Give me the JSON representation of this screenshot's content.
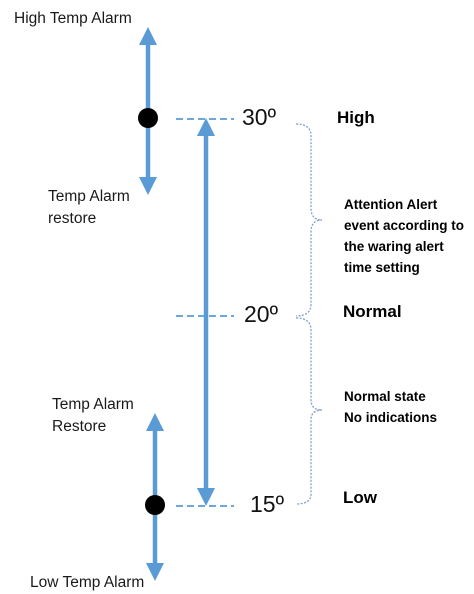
{
  "labels": {
    "high_temp_alarm": "High Temp Alarm",
    "temp_alarm_restore_upper_1": "Temp Alarm",
    "temp_alarm_restore_upper_2": "restore",
    "temp_alarm_restore_lower_1": "Temp Alarm",
    "temp_alarm_restore_lower_2": "Restore",
    "low_temp_alarm": "Low Temp Alarm"
  },
  "thresholds": [
    {
      "value": "30º",
      "level": "High"
    },
    {
      "value": "20º",
      "level": "Normal"
    },
    {
      "value": "15º",
      "level": "Low"
    }
  ],
  "notes": {
    "attention": [
      "Attention Alert",
      "event according to",
      "the waring alert",
      "time setting"
    ],
    "normal": [
      "Normal state",
      "No indications"
    ]
  },
  "colors": {
    "arrow": "#5b9bd5",
    "dashed": "#5b9bd5",
    "brace": "#7f9fcf",
    "dot": "#000000"
  }
}
